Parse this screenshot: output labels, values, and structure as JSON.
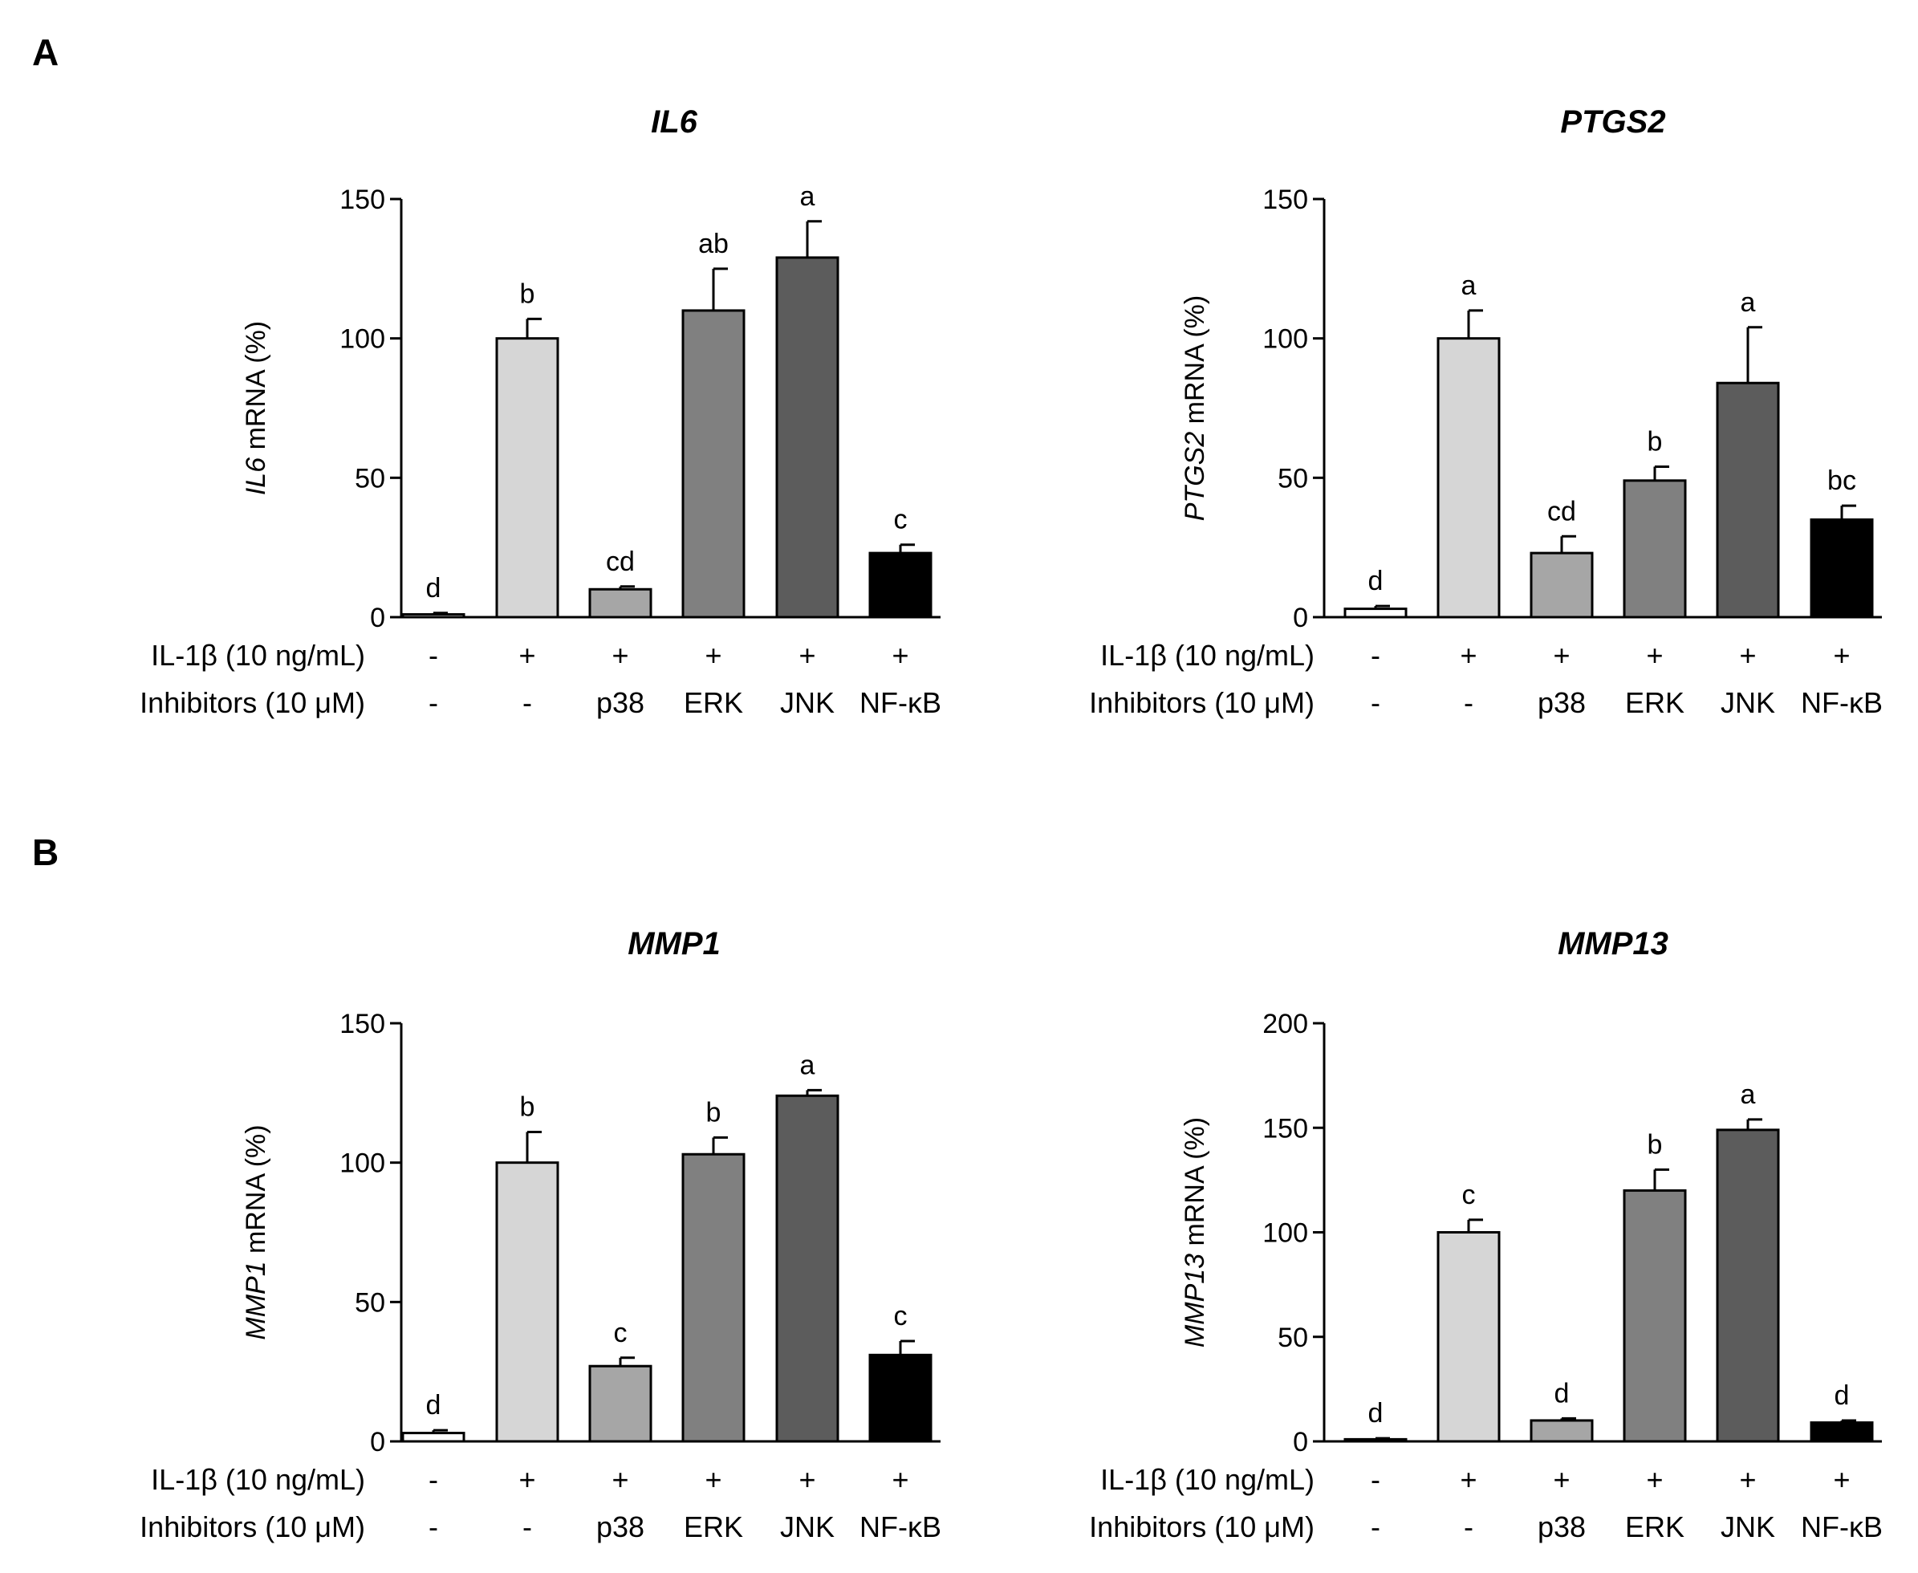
{
  "panels": [
    {
      "letter": "A"
    },
    {
      "letter": "B"
    }
  ],
  "row_labels": [
    "IL-1β (10 ng/mL)",
    "Inhibitors (10 μM)"
  ],
  "colors": [
    "#ffffff",
    "#d6d6d6",
    "#a6a6a6",
    "#808080",
    "#5c5c5c",
    "#000000"
  ],
  "chart_data": [
    {
      "type": "bar",
      "title": "IL6",
      "ylabel_gene": "IL6",
      "ylabel_rest": " mRNA (%)",
      "ylim": [
        0,
        150
      ],
      "yticks": [
        "0",
        "50",
        "100",
        "150"
      ],
      "il1b": [
        "-",
        "+",
        "+",
        "+",
        "+",
        "+"
      ],
      "inhibitors": [
        "-",
        "-",
        "p38",
        "ERK",
        "JNK",
        "NF-κB"
      ],
      "values": [
        1,
        100,
        10,
        110,
        129,
        23
      ],
      "errors": [
        0.5,
        7,
        1,
        15,
        13,
        3
      ],
      "letters": [
        "d",
        "b",
        "cd",
        "ab",
        "a",
        "c"
      ]
    },
    {
      "type": "bar",
      "title": "PTGS2",
      "ylabel_gene": "PTGS2",
      "ylabel_rest": " mRNA (%)",
      "ylim": [
        0,
        150
      ],
      "yticks": [
        "0",
        "50",
        "100",
        "150"
      ],
      "il1b": [
        "-",
        "+",
        "+",
        "+",
        "+",
        "+"
      ],
      "inhibitors": [
        "-",
        "-",
        "p38",
        "ERK",
        "JNK",
        "NF-κB"
      ],
      "values": [
        3,
        100,
        23,
        49,
        84,
        35
      ],
      "errors": [
        1,
        10,
        6,
        5,
        20,
        5
      ],
      "letters": [
        "d",
        "a",
        "cd",
        "b",
        "a",
        "bc"
      ]
    },
    {
      "type": "bar",
      "title": "MMP1",
      "ylabel_gene": "MMP1",
      "ylabel_rest": " mRNA (%)",
      "ylim": [
        0,
        150
      ],
      "yticks": [
        "0",
        "50",
        "100",
        "150"
      ],
      "il1b": [
        "-",
        "+",
        "+",
        "+",
        "+",
        "+"
      ],
      "inhibitors": [
        "-",
        "-",
        "p38",
        "ERK",
        "JNK",
        "NF-κB"
      ],
      "values": [
        3,
        100,
        27,
        103,
        124,
        31
      ],
      "errors": [
        1,
        11,
        3,
        6,
        2,
        5
      ],
      "letters": [
        "d",
        "b",
        "c",
        "b",
        "a",
        "c"
      ]
    },
    {
      "type": "bar",
      "title": "MMP13",
      "ylabel_gene": "MMP13",
      "ylabel_rest": " mRNA (%)",
      "ylim": [
        0,
        200
      ],
      "yticks": [
        "0",
        "50",
        "100",
        "150",
        "200"
      ],
      "il1b": [
        "-",
        "+",
        "+",
        "+",
        "+",
        "+"
      ],
      "inhibitors": [
        "-",
        "-",
        "p38",
        "ERK",
        "JNK",
        "NF-κB"
      ],
      "values": [
        1,
        100,
        10,
        120,
        149,
        9
      ],
      "errors": [
        0.5,
        6,
        1,
        10,
        5,
        1
      ],
      "letters": [
        "d",
        "c",
        "d",
        "b",
        "a",
        "d"
      ]
    }
  ]
}
